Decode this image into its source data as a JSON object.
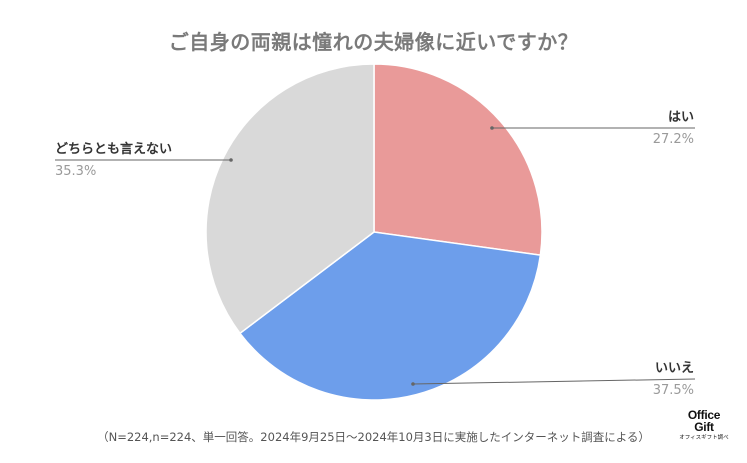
{
  "chart_data": {
    "type": "pie",
    "title": "ご自身の両親は憧れの夫婦像に近いですか？",
    "slices": [
      {
        "label": "はい",
        "value": 27.2,
        "value_text": "27.2%",
        "color": "#e99a99"
      },
      {
        "label": "いいえ",
        "value": 37.5,
        "value_text": "37.5%",
        "color": "#6d9eeb"
      },
      {
        "label": "どちらとも言えない",
        "value": 35.3,
        "value_text": "35.3%",
        "color": "#d9d9d9"
      }
    ],
    "legend": "none",
    "start": "12 o'clock, clockwise"
  },
  "footnote": "（N=224,n=224、単一回答。2024年9月25日～2024年10月3日に実施したインターネット調査による）",
  "brand": {
    "logo_line1": "Office",
    "logo_line2": "Gift",
    "sub": "オフィスギフト調べ"
  }
}
